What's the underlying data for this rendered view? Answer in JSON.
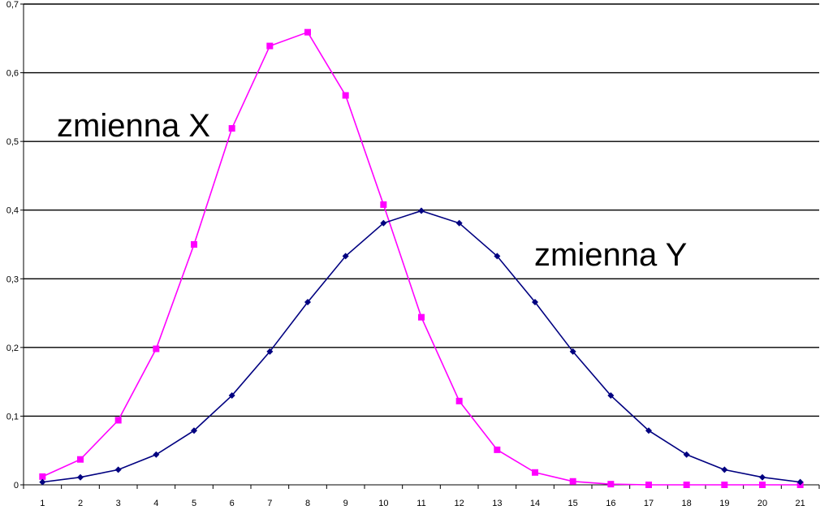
{
  "chart_data": {
    "type": "line",
    "categories": [
      "1",
      "2",
      "3",
      "4",
      "5",
      "6",
      "7",
      "8",
      "9",
      "10",
      "11",
      "12",
      "13",
      "14",
      "15",
      "16",
      "17",
      "18",
      "19",
      "20",
      "21"
    ],
    "series": [
      {
        "name": "zmienna X",
        "color": "#ff00ff",
        "marker": "square",
        "values": [
          0.012,
          0.037,
          0.094,
          0.198,
          0.35,
          0.519,
          0.639,
          0.659,
          0.567,
          0.408,
          0.244,
          0.122,
          0.051,
          0.018,
          0.005,
          0.001,
          0.0,
          0.0,
          0.0,
          0.0,
          0.0
        ]
      },
      {
        "name": "zmienna Y",
        "color": "#000080",
        "marker": "diamond",
        "values": [
          0.004,
          0.011,
          0.022,
          0.044,
          0.079,
          0.13,
          0.194,
          0.266,
          0.333,
          0.381,
          0.399,
          0.381,
          0.333,
          0.266,
          0.194,
          0.13,
          0.079,
          0.044,
          0.022,
          0.011,
          0.004
        ]
      }
    ],
    "y_ticks": [
      "0",
      "0,1",
      "0,2",
      "0,3",
      "0,4",
      "0,5",
      "0,6",
      "0,7"
    ],
    "ylim": [
      0,
      0.7
    ],
    "grid": "horizontal",
    "annotations": [
      {
        "text": "zmienna X",
        "series": 0
      },
      {
        "text": "zmienna Y",
        "series": 1
      }
    ]
  }
}
